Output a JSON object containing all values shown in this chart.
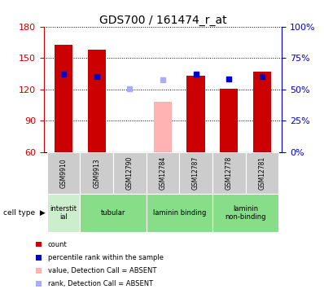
{
  "title": "GDS700 / 161474_r_at",
  "samples": [
    "GSM9910",
    "GSM9913",
    "GSM12790",
    "GSM12784",
    "GSM12787",
    "GSM12778",
    "GSM12781"
  ],
  "count_present": [
    163,
    158,
    null,
    null,
    133,
    121,
    137
  ],
  "count_absent": [
    null,
    null,
    null,
    108,
    null,
    null,
    null
  ],
  "rank_present": [
    135,
    132,
    null,
    null,
    135,
    130,
    132
  ],
  "rank_absent": [
    null,
    null,
    121,
    129,
    null,
    null,
    null
  ],
  "ylim_left": [
    60,
    180
  ],
  "ylim_right": [
    0,
    100
  ],
  "yticks_left": [
    60,
    90,
    120,
    150,
    180
  ],
  "yticks_right": [
    0,
    25,
    50,
    75,
    100
  ],
  "bar_width": 0.55,
  "rank_marker_size": 5,
  "groups": [
    {
      "label": "interstit\nial",
      "start": 0,
      "end": 0,
      "color": "#cceecc"
    },
    {
      "label": "tubular",
      "start": 1,
      "end": 2,
      "color": "#88dd88"
    },
    {
      "label": "laminin binding",
      "start": 3,
      "end": 4,
      "color": "#88dd88"
    },
    {
      "label": "laminin\nnon-binding",
      "start": 5,
      "end": 6,
      "color": "#88dd88"
    }
  ],
  "colors": {
    "count_present": "#cc0000",
    "count_absent": "#ffb3b3",
    "rank_present": "#0000cc",
    "rank_absent": "#aaaaff",
    "left_tick": "#cc0000",
    "right_tick": "#0000cc",
    "sample_box_bg": "#cccccc"
  },
  "legend": [
    {
      "color": "#cc0000",
      "label": "count"
    },
    {
      "color": "#0000cc",
      "label": "percentile rank within the sample"
    },
    {
      "color": "#ffb3b3",
      "label": "value, Detection Call = ABSENT"
    },
    {
      "color": "#aaaaff",
      "label": "rank, Detection Call = ABSENT"
    }
  ]
}
